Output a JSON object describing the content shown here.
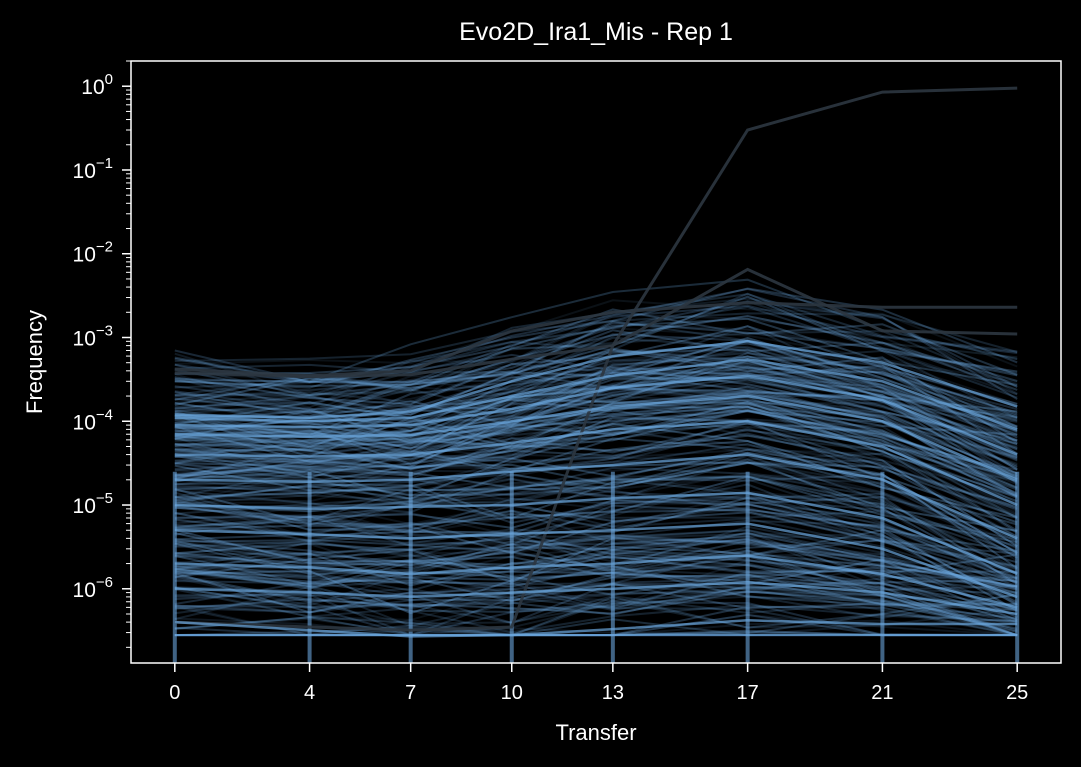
{
  "chart_data": {
    "type": "line",
    "title": "Evo2D_Ira1_Mis - Rep 1",
    "xlabel": "Transfer",
    "ylabel": "Frequency",
    "yscale": "log",
    "x": [
      0,
      4,
      7,
      10,
      13,
      17,
      21,
      25
    ],
    "xlim": [
      -1.3,
      26.3
    ],
    "ylim": [
      1.3e-07,
      2.0
    ],
    "y_tick_labels": [
      "10^-6",
      "10^-5",
      "10^-4",
      "10^-3",
      "10^-2",
      "10^-1",
      "10^0"
    ],
    "colors": {
      "background": "#000000",
      "axes": "#ffffff",
      "lineage": "#6aa5dc",
      "dominant": "#2c3640"
    },
    "series_note": "thousands of overlapping lineage trajectories; representative set shown",
    "series": [
      {
        "values": [
          4e-07,
          3.5e-07,
          3.2e-07,
          3.5e-07,
          0.0008,
          0.3,
          0.85,
          0.95
        ]
      },
      {
        "values": [
          0.00042,
          0.00035,
          0.0004,
          0.0012,
          0.002,
          0.0026,
          0.0023,
          0.0023
        ]
      },
      {
        "values": [
          0.00038,
          0.00034,
          0.00036,
          0.00055,
          0.0008,
          0.0065,
          0.0012,
          0.0011
        ]
      },
      {
        "values": [
          0.00012,
          0.00011,
          0.00013,
          0.0003,
          0.0006,
          0.0009,
          0.0005,
          0.00015
        ]
      },
      {
        "values": [
          0.00011,
          0.0001,
          0.00011,
          0.0002,
          0.00035,
          0.00055,
          0.0003,
          8e-05
        ]
      },
      {
        "values": [
          9e-05,
          8.5e-05,
          9e-05,
          0.00014,
          0.00025,
          0.00035,
          0.00018,
          4e-05
        ]
      },
      {
        "values": [
          7e-05,
          6.5e-05,
          6.8e-05,
          0.0001,
          0.00015,
          0.0002,
          0.0001,
          2e-05
        ]
      },
      {
        "values": [
          4e-05,
          3.8e-05,
          4e-05,
          5.5e-05,
          8e-05,
          0.0001,
          5e-05,
          1e-05
        ]
      },
      {
        "values": [
          2e-05,
          1.9e-05,
          2e-05,
          2.5e-05,
          3e-05,
          4e-05,
          2e-05,
          4e-06
        ]
      },
      {
        "values": [
          1e-05,
          9e-06,
          9.5e-06,
          1e-05,
          1.2e-05,
          1.4e-05,
          7e-06,
          1.5e-06
        ]
      },
      {
        "values": [
          5e-06,
          4.5e-06,
          4e-06,
          4.5e-06,
          5e-06,
          6e-06,
          3e-06,
          8e-07
        ]
      },
      {
        "values": [
          2e-06,
          1.8e-06,
          1.5e-06,
          1.8e-06,
          2e-06,
          2.5e-06,
          1.5e-06,
          6e-07
        ]
      },
      {
        "values": [
          1e-06,
          9e-07,
          8e-07,
          9e-07,
          1e-06,
          1.2e-06,
          9e-07,
          5e-07
        ]
      },
      {
        "values": [
          4e-07,
          3.2e-07,
          2.7e-07,
          2.8e-07,
          3.3e-07,
          4.2e-07,
          3.8e-07,
          3.8e-07
        ]
      }
    ]
  }
}
